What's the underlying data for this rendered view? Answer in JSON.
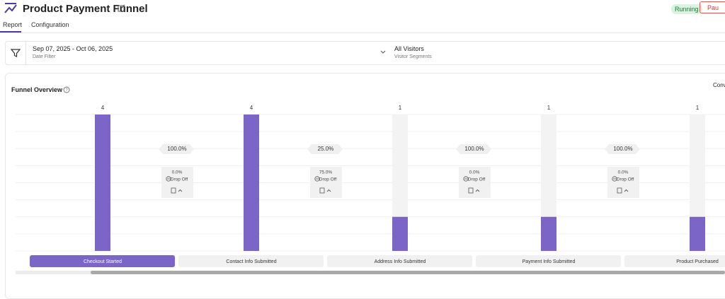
{
  "header": {
    "title": "Product Payment Funnel",
    "status": "Running",
    "button": "Pau"
  },
  "tabs": [
    "Report",
    "Configuration"
  ],
  "filters": {
    "date": "Sep 07, 2025 - Oct 06, 2025",
    "date_label": "Date Filter",
    "segment": "All Visitors",
    "segment_label": "Visitor Segments"
  },
  "card": {
    "title": "Funnel Overview",
    "right_label": "Conv"
  },
  "chart_data": {
    "type": "bar",
    "categories": [
      "Checkout Started",
      "Contact Info Submitted",
      "Address Info Submitted",
      "Payment Info Submitted",
      "Product Purchased"
    ],
    "values": [
      4,
      4,
      1,
      1,
      1
    ],
    "color": "#7b65c6",
    "ylim": [
      0,
      4
    ],
    "grid": true,
    "active_category": 0,
    "conversion": {
      "values": [
        100,
        25,
        100,
        100
      ],
      "value_labels": [
        "100.0%",
        "25.0%",
        "100.0%",
        "100.0%"
      ]
    },
    "drop_off": {
      "name": "Drop Off",
      "values": [
        0,
        75,
        0,
        0
      ],
      "value_labels": [
        "0.0%",
        "75.0%",
        "0.0%",
        "0.0%"
      ]
    }
  }
}
